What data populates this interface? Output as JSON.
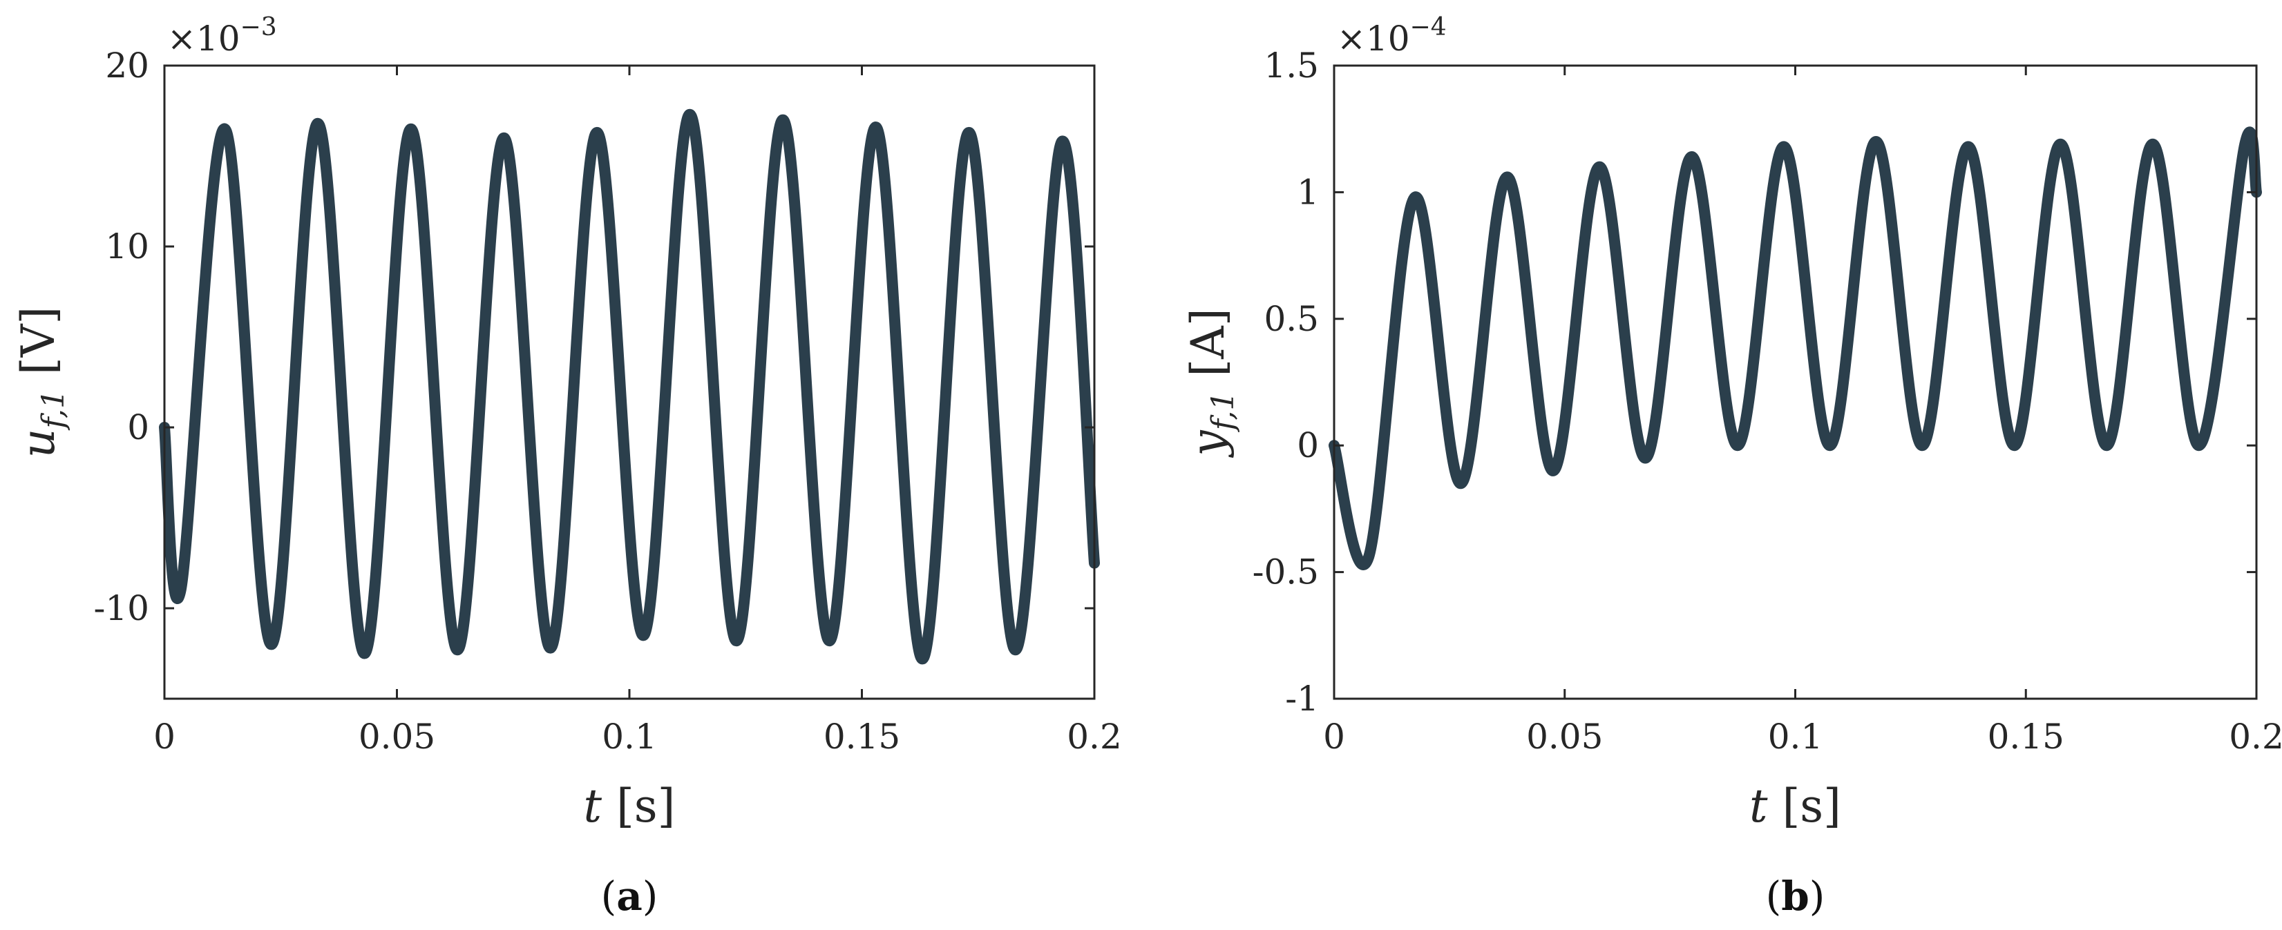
{
  "colors": {
    "series": "#2b3f4c",
    "axis": "#262626"
  },
  "chart_data": [
    {
      "type": "line",
      "panel_label": "(a)",
      "caption": {
        "open": "(",
        "letter": "a",
        "close": ")"
      },
      "xlabel": {
        "symbol": "t",
        "unit": "[s]"
      },
      "ylabel": {
        "symbol": "u",
        "subscript": "f,1",
        "unit": "[V]"
      },
      "y_multiplier": {
        "prefix": "×10",
        "exponent": "−3"
      },
      "xlim": [
        0,
        0.2
      ],
      "ylim": [
        -15,
        20
      ],
      "xticks": [
        0,
        0.05,
        0.1,
        0.15,
        0.2
      ],
      "xtick_labels": [
        "0",
        "0.05",
        "0.1",
        "0.15",
        "0.2"
      ],
      "yticks": [
        -10,
        0,
        10,
        20
      ],
      "ytick_labels": [
        "-10",
        "0",
        "10",
        "20"
      ],
      "grid": false,
      "series": [
        {
          "x": [
            0,
            0.0035,
            0.013,
            0.023,
            0.033,
            0.043,
            0.053,
            0.063,
            0.073,
            0.083,
            0.093,
            0.103,
            0.113,
            0.123,
            0.133,
            0.143,
            0.153,
            0.163,
            0.173,
            0.183,
            0.193,
            0.2
          ],
          "y": [
            0,
            -9,
            16.5,
            -12,
            16.8,
            -12.5,
            16.5,
            -12.3,
            16,
            -12.2,
            16.3,
            -11.5,
            17.3,
            -11.8,
            17,
            -11.8,
            16.6,
            -12.8,
            16.3,
            -12.3,
            15.8,
            -7.5
          ]
        }
      ]
    },
    {
      "type": "line",
      "panel_label": "(b)",
      "caption": {
        "open": "(",
        "letter": "b",
        "close": ")"
      },
      "xlabel": {
        "symbol": "t",
        "unit": "[s]"
      },
      "ylabel": {
        "symbol": "y",
        "subscript": "f,1",
        "unit": "[A]"
      },
      "y_multiplier": {
        "prefix": "×10",
        "exponent": "−4"
      },
      "xlim": [
        0,
        0.2
      ],
      "ylim": [
        -1,
        1.5
      ],
      "xticks": [
        0,
        0.05,
        0.1,
        0.15,
        0.2
      ],
      "xtick_labels": [
        "0",
        "0.05",
        "0.1",
        "0.15",
        "0.2"
      ],
      "yticks": [
        -1,
        -0.5,
        0,
        0.5,
        1,
        1.5
      ],
      "ytick_labels": [
        "-1",
        "-0.5",
        "0",
        "0.5",
        "1",
        "1.5"
      ],
      "grid": false,
      "series": [
        {
          "x": [
            0,
            0.0075,
            0.0175,
            0.0275,
            0.0375,
            0.0475,
            0.0575,
            0.0675,
            0.0775,
            0.0875,
            0.0975,
            0.1075,
            0.1175,
            0.1275,
            0.1375,
            0.1475,
            0.1575,
            0.1675,
            0.1775,
            0.1875,
            0.1975,
            0.2
          ],
          "y": [
            0,
            -0.44,
            0.98,
            -0.15,
            1.06,
            -0.1,
            1.1,
            -0.05,
            1.14,
            0,
            1.18,
            0,
            1.2,
            0,
            1.18,
            0,
            1.19,
            0,
            1.19,
            0,
            1.19,
            1.0
          ]
        }
      ]
    }
  ]
}
